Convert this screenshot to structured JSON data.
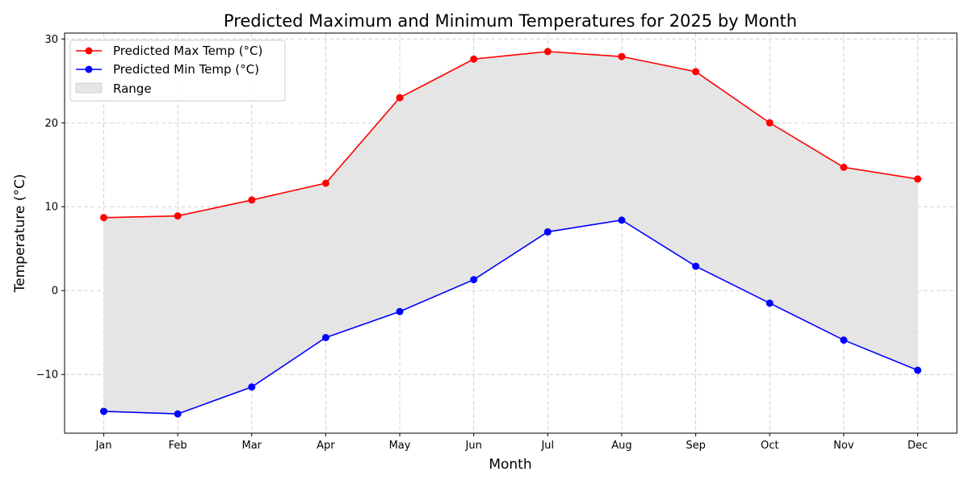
{
  "chart_data": {
    "type": "line",
    "title": "Predicted Maximum and Minimum Temperatures for 2025 by Month",
    "xlabel": "Month",
    "ylabel": "Temperature (°C)",
    "categories": [
      "Jan",
      "Feb",
      "Mar",
      "Apr",
      "May",
      "Jun",
      "Jul",
      "Aug",
      "Sep",
      "Oct",
      "Nov",
      "Dec"
    ],
    "series": [
      {
        "name": "Predicted Max Temp (°C)",
        "color": "#ff0000",
        "values": [
          8.7,
          8.9,
          10.8,
          12.8,
          23.0,
          27.6,
          28.5,
          27.9,
          26.1,
          20.0,
          14.7,
          13.3
        ]
      },
      {
        "name": "Predicted Min Temp (°C)",
        "color": "#0000ff",
        "values": [
          -14.4,
          -14.7,
          -11.5,
          -5.6,
          -2.5,
          1.3,
          7.0,
          8.4,
          2.9,
          -1.5,
          -5.9,
          -9.5
        ]
      }
    ],
    "fill_between": {
      "name": "Range",
      "color": "#e5e5e5"
    },
    "ylim": [
      -17,
      30.7
    ],
    "yticks": [
      -10,
      0,
      10,
      20,
      30
    ],
    "ytick_labels": [
      "−10",
      "0",
      "10",
      "20",
      "30"
    ],
    "grid": true,
    "legend_position": "upper-left"
  }
}
